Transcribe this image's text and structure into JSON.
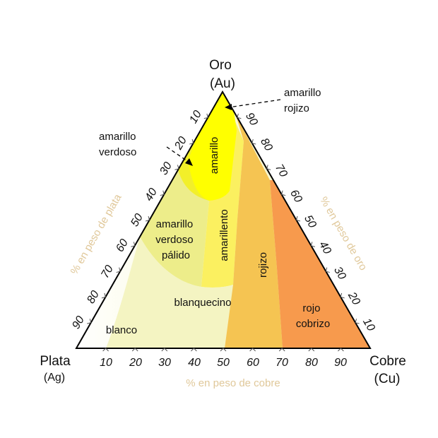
{
  "vertices": {
    "top": {
      "name": "Oro",
      "symbol": "(Au)"
    },
    "left": {
      "name": "Plata",
      "symbol": "(Ag)"
    },
    "right": {
      "name": "Cobre",
      "symbol": "(Cu)"
    }
  },
  "axes": {
    "bottom_title": "% en peso de cobre",
    "left_title": "% en peso de plata",
    "right_title": "% en peso de oro",
    "bottom_ticks": [
      "10",
      "20",
      "30",
      "40",
      "50",
      "60",
      "70",
      "80",
      "90"
    ],
    "left_ticks": [
      "10",
      "20",
      "30",
      "40",
      "50",
      "60",
      "70",
      "80",
      "90"
    ],
    "right_ticks": [
      "90",
      "80",
      "70",
      "60",
      "50",
      "40",
      "30",
      "20",
      "10"
    ]
  },
  "regions": {
    "amarillo_rojizo": [
      "amarillo",
      "rojizo"
    ],
    "amarillo_verdoso": [
      "amarillo",
      "verdoso"
    ],
    "amarillo": "amarillo",
    "amarillo_verdoso_palido": [
      "amarillo",
      "verdoso",
      "pálido"
    ],
    "amarillento": "amarillento",
    "rojizo": "rojizo",
    "blanquecino": "blanquecino",
    "blanco": "blanco",
    "rojo_cobrizo": [
      "rojo",
      "cobrizo"
    ]
  },
  "colors": {
    "blanco": "#ffffff",
    "blanquecino": "#f4f4c2",
    "amarillo_verdoso_palido": "#eded8a",
    "amarillento": "#fbf060",
    "amarillo": "#ffff00",
    "amarillo_verdoso": "#f2ef2a",
    "rojizo": "#f5c452",
    "rojo_cobrizo": "#f79a4d",
    "axis_title": "#e0c89a"
  }
}
